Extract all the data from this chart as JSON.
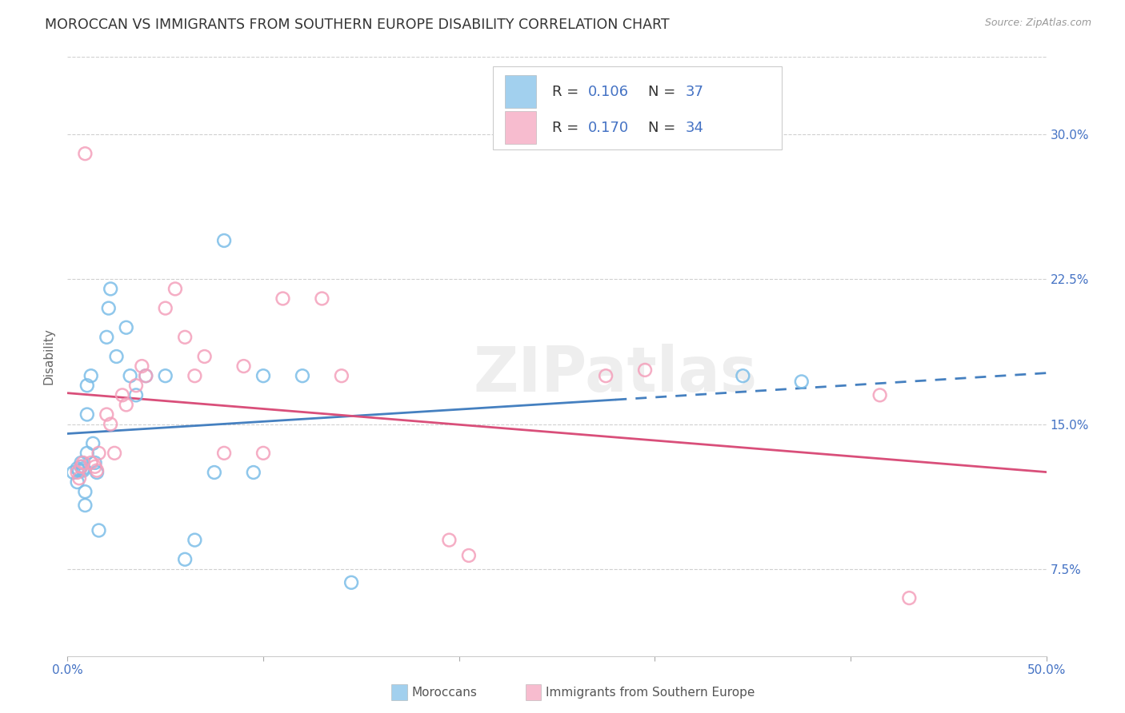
{
  "title": "MOROCCAN VS IMMIGRANTS FROM SOUTHERN EUROPE DISABILITY CORRELATION CHART",
  "source": "Source: ZipAtlas.com",
  "ylabel": "Disability",
  "ytick_values": [
    0.075,
    0.15,
    0.225,
    0.3
  ],
  "ytick_labels": [
    "7.5%",
    "15.0%",
    "22.5%",
    "30.0%"
  ],
  "xlim": [
    0.0,
    0.5
  ],
  "ylim": [
    0.03,
    0.34
  ],
  "blue_scatter_color": "#7bbde8",
  "pink_scatter_color": "#f4a0bb",
  "line_blue_color": "#4580c0",
  "line_pink_color": "#d94f7a",
  "watermark_text": "ZIPatlas",
  "watermark_color": "#e0e0e0",
  "moroccan_x": [
    0.003,
    0.005,
    0.005,
    0.006,
    0.007,
    0.007,
    0.008,
    0.008,
    0.009,
    0.009,
    0.01,
    0.01,
    0.01,
    0.012,
    0.013,
    0.014,
    0.015,
    0.016,
    0.02,
    0.021,
    0.022,
    0.025,
    0.03,
    0.032,
    0.035,
    0.04,
    0.05,
    0.06,
    0.065,
    0.075,
    0.08,
    0.095,
    0.1,
    0.12,
    0.145,
    0.345,
    0.375
  ],
  "moroccan_y": [
    0.125,
    0.12,
    0.127,
    0.126,
    0.13,
    0.128,
    0.127,
    0.126,
    0.115,
    0.108,
    0.135,
    0.155,
    0.17,
    0.175,
    0.14,
    0.13,
    0.125,
    0.095,
    0.195,
    0.21,
    0.22,
    0.185,
    0.2,
    0.175,
    0.165,
    0.175,
    0.175,
    0.08,
    0.09,
    0.125,
    0.245,
    0.125,
    0.175,
    0.175,
    0.068,
    0.175,
    0.172
  ],
  "southern_x": [
    0.005,
    0.006,
    0.007,
    0.008,
    0.009,
    0.012,
    0.014,
    0.015,
    0.016,
    0.02,
    0.022,
    0.024,
    0.028,
    0.03,
    0.035,
    0.038,
    0.04,
    0.05,
    0.055,
    0.06,
    0.065,
    0.07,
    0.08,
    0.09,
    0.1,
    0.11,
    0.13,
    0.14,
    0.195,
    0.205,
    0.275,
    0.295,
    0.415,
    0.43
  ],
  "southern_y": [
    0.125,
    0.122,
    0.128,
    0.13,
    0.29,
    0.13,
    0.128,
    0.126,
    0.135,
    0.155,
    0.15,
    0.135,
    0.165,
    0.16,
    0.17,
    0.18,
    0.175,
    0.21,
    0.22,
    0.195,
    0.175,
    0.185,
    0.135,
    0.18,
    0.135,
    0.215,
    0.215,
    0.175,
    0.09,
    0.082,
    0.175,
    0.178,
    0.165,
    0.06
  ]
}
